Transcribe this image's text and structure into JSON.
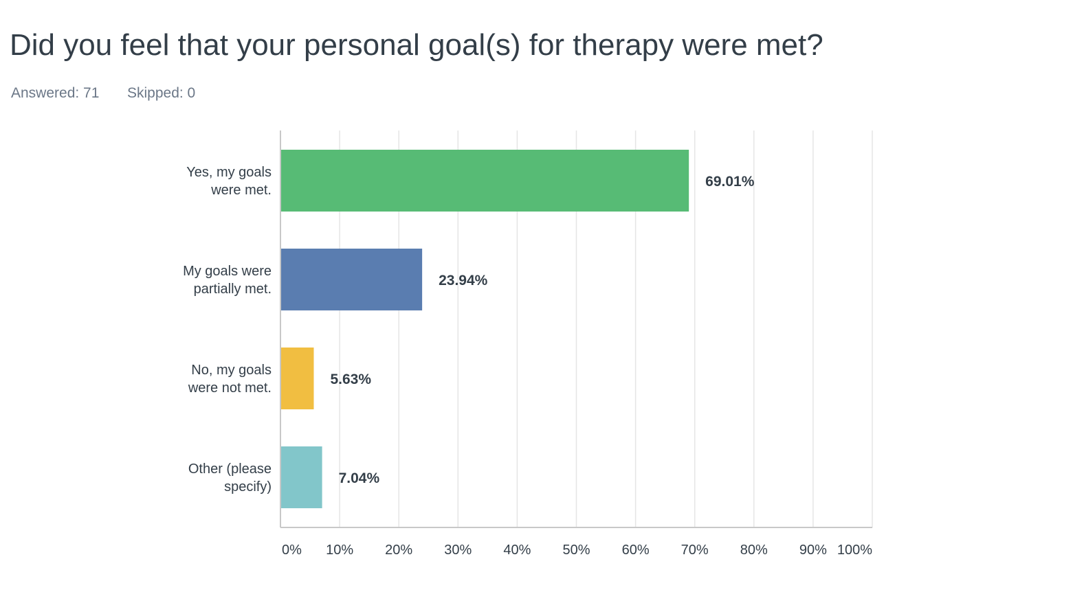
{
  "header": {
    "question": "Did you feel that your personal goal(s) for therapy were met?",
    "answered": "Answered: 71",
    "skipped": "Skipped: 0"
  },
  "chart_data": {
    "type": "bar",
    "orientation": "horizontal",
    "categories": [
      [
        "Yes, my goals",
        "were met."
      ],
      [
        "My goals were",
        "partially met."
      ],
      [
        "No, my goals",
        "were not met."
      ],
      [
        "Other (please",
        "specify)"
      ]
    ],
    "values": [
      69.01,
      23.94,
      5.63,
      7.04
    ],
    "value_labels": [
      "69.01%",
      "23.94%",
      "5.63%",
      "7.04%"
    ],
    "colors": [
      "#57bb75",
      "#5a7db0",
      "#f1be41",
      "#82c6ca"
    ],
    "xlim": [
      0,
      100
    ],
    "ticks": [
      0,
      10,
      20,
      30,
      40,
      50,
      60,
      70,
      80,
      90,
      100
    ],
    "tick_labels": [
      "0%",
      "10%",
      "20%",
      "30%",
      "40%",
      "50%",
      "60%",
      "70%",
      "80%",
      "90%",
      "100%"
    ],
    "grid": true,
    "legend": "none"
  }
}
